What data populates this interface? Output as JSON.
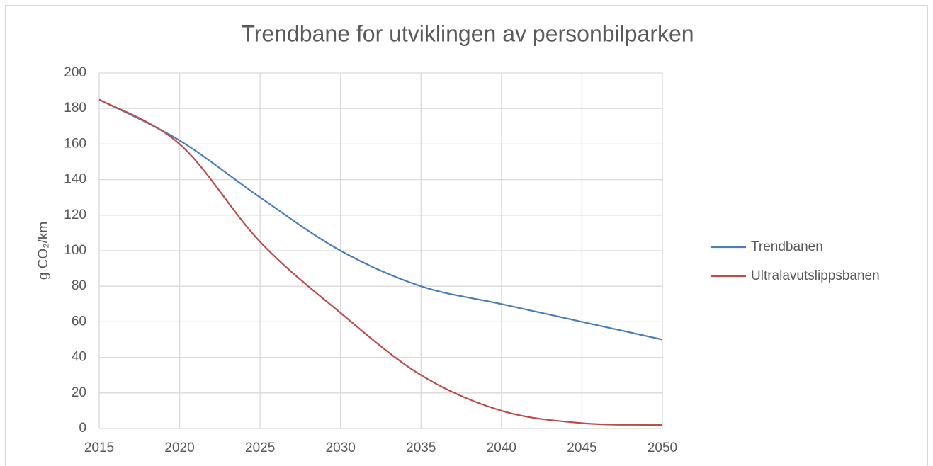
{
  "chart_data": {
    "type": "line",
    "title": "Trendbane for utviklingen av personbilparken",
    "y_label": "g CO₂/km",
    "x": [
      2015,
      2020,
      2025,
      2030,
      2035,
      2040,
      2045,
      2050
    ],
    "series": [
      {
        "name": "Trendbanen",
        "color": "#4a7ebb",
        "values": [
          185,
          162,
          130,
          100,
          80,
          70,
          60,
          50
        ]
      },
      {
        "name": "Ultralavutslippsbanen",
        "color": "#be4b48",
        "values": [
          185,
          160,
          105,
          65,
          30,
          10,
          3,
          2
        ]
      }
    ],
    "xlim": [
      2015,
      2050
    ],
    "xticks": [
      2015,
      2020,
      2025,
      2030,
      2035,
      2040,
      2045,
      2050
    ],
    "ylim": [
      0,
      200
    ],
    "yticks": [
      0,
      20,
      40,
      60,
      80,
      100,
      120,
      140,
      160,
      180,
      200
    ],
    "grid": true,
    "legend": "right"
  }
}
